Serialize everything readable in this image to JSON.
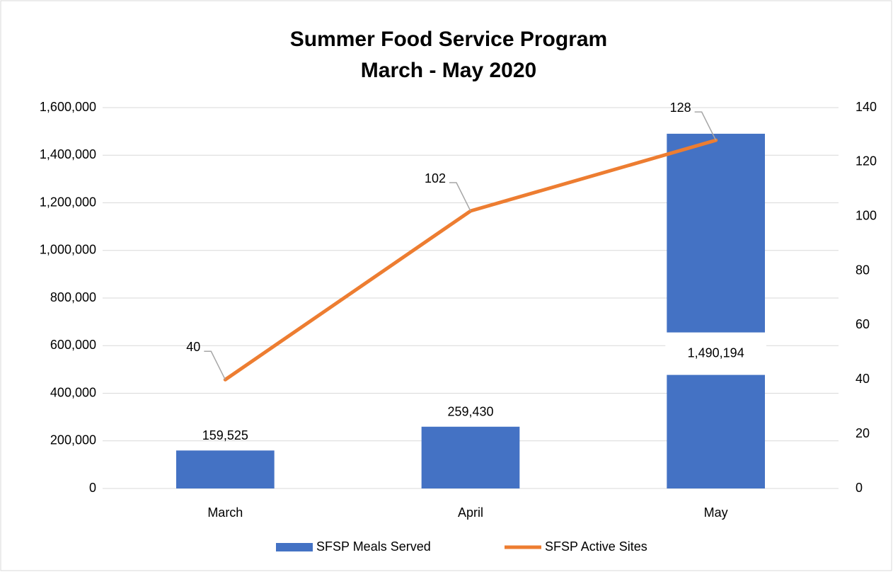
{
  "chart_data": {
    "type": "bar",
    "title": "Summer Food Service Program",
    "subtitle": "March - May 2020",
    "categories": [
      "March",
      "April",
      "May"
    ],
    "series": [
      {
        "name": "SFSP Meals Served",
        "type": "bar",
        "color": "#4472c4",
        "values": [
          159525,
          259430,
          1490194
        ],
        "value_labels": [
          "159,525",
          "259,430",
          "1,490,194"
        ]
      },
      {
        "name": "SFSP Active Sites",
        "type": "line",
        "axis": "y2",
        "color": "#ed7d31",
        "values": [
          40,
          102,
          128
        ]
      }
    ],
    "ylim": [
      0,
      1600000
    ],
    "yticks": [
      0,
      {
        "value": 200000,
        "label": "200,000"
      },
      {
        "value": 400000,
        "label": "400,000"
      },
      {
        "value": 600000,
        "label": "600,000"
      },
      {
        "value": 800000,
        "label": "800,000"
      },
      {
        "value": 1000000,
        "label": "1,000,000"
      },
      {
        "value": 1200000,
        "label": "1,200,000"
      },
      {
        "value": 1400000,
        "label": "1,400,000"
      },
      {
        "value": 1600000,
        "label": "1,600,000"
      }
    ],
    "y2lim": [
      0,
      140
    ],
    "y2ticks": [
      0,
      20,
      40,
      60,
      80,
      100,
      120,
      140
    ],
    "grid": true,
    "legend": "bottom"
  }
}
